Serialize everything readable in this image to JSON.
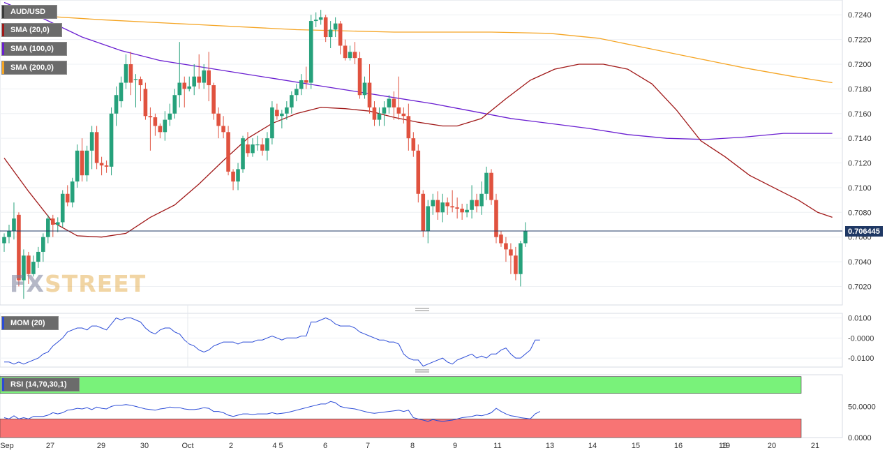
{
  "legend": {
    "symbol": "AUD/USD",
    "sma20": "SMA (20,0)",
    "sma100": "SMA (100,0)",
    "sma200": "SMA (200,0)",
    "mom": "MOM (20)",
    "rsi": "RSI (14,70,30,1)"
  },
  "colors": {
    "up": "#26a17b",
    "down": "#e0523f",
    "sma20": "#a01818",
    "sma100": "#6a1fd1",
    "sma200": "#f5a524",
    "mom": "#2a4bd7",
    "rsi": "#2a4bd7",
    "last_price_line": "#1f3864",
    "rsi_overbought_fill": "#79f27a",
    "rsi_oversold_fill": "#f87474"
  },
  "watermark": {
    "part1": "FX",
    "part2": "STREET"
  },
  "last_price": "0.706445",
  "chart_data": [
    {
      "type": "candlestick",
      "title": "AUD/USD",
      "ylim": [
        0.7005,
        0.7252
      ],
      "y_ticks": [
        "0.7240",
        "0.7220",
        "0.7200",
        "0.7180",
        "0.7160",
        "0.7140",
        "0.7120",
        "0.7100",
        "0.7080",
        "0.7060",
        "0.7040",
        "0.7020"
      ],
      "x_ticks": [
        "Sep",
        "27",
        "29",
        "30",
        "Oct",
        "2",
        "4 5",
        "6",
        "7",
        "8",
        "9",
        "11",
        "13",
        "14",
        "15",
        "16",
        "18",
        "19",
        "20",
        "21"
      ],
      "candles": [
        [
          0.7055,
          0.706,
          0.7048,
          0.7063
        ],
        [
          0.706,
          0.7065,
          0.7055,
          0.707
        ],
        [
          0.7065,
          0.7075,
          0.7058,
          0.7088
        ],
        [
          0.7078,
          0.7025,
          0.702,
          0.708
        ],
        [
          0.7025,
          0.7045,
          0.701,
          0.705
        ],
        [
          0.7045,
          0.703,
          0.7022,
          0.7048
        ],
        [
          0.703,
          0.704,
          0.7028,
          0.7045
        ],
        [
          0.704,
          0.7048,
          0.7035,
          0.7052
        ],
        [
          0.7048,
          0.706,
          0.704,
          0.7063
        ],
        [
          0.706,
          0.7075,
          0.7055,
          0.7078
        ],
        [
          0.7075,
          0.707,
          0.706,
          0.7078
        ],
        [
          0.707,
          0.7072,
          0.7064,
          0.7076
        ],
        [
          0.7072,
          0.7095,
          0.7068,
          0.7098
        ],
        [
          0.7095,
          0.7088,
          0.7085,
          0.7102
        ],
        [
          0.7088,
          0.7105,
          0.7084,
          0.7108
        ],
        [
          0.7105,
          0.713,
          0.71,
          0.7135
        ],
        [
          0.713,
          0.711,
          0.7105,
          0.714
        ],
        [
          0.711,
          0.713,
          0.7105,
          0.7134
        ],
        [
          0.713,
          0.7145,
          0.7115,
          0.715
        ],
        [
          0.7145,
          0.712,
          0.7115,
          0.715
        ],
        [
          0.712,
          0.7118,
          0.711,
          0.7125
        ],
        [
          0.7118,
          0.7117,
          0.7112,
          0.7122
        ],
        [
          0.7117,
          0.716,
          0.711,
          0.7165
        ],
        [
          0.716,
          0.7175,
          0.715,
          0.7182
        ],
        [
          0.717,
          0.7185,
          0.7165,
          0.719
        ],
        [
          0.7185,
          0.72,
          0.718,
          0.7208
        ],
        [
          0.72,
          0.7185,
          0.7175,
          0.721
        ],
        [
          0.7188,
          0.7188,
          0.7165,
          0.7192
        ],
        [
          0.7188,
          0.7183,
          0.717,
          0.719
        ],
        [
          0.718,
          0.7158,
          0.7155,
          0.7185
        ],
        [
          0.7158,
          0.7157,
          0.713,
          0.7165
        ],
        [
          0.7157,
          0.715,
          0.7142,
          0.716
        ],
        [
          0.715,
          0.7145,
          0.714,
          0.7152
        ],
        [
          0.7145,
          0.7155,
          0.7138,
          0.7162
        ],
        [
          0.7155,
          0.716,
          0.715,
          0.7168
        ],
        [
          0.716,
          0.7175,
          0.7156,
          0.718
        ],
        [
          0.7175,
          0.7185,
          0.7165,
          0.7218
        ],
        [
          0.7185,
          0.718,
          0.7165,
          0.719
        ],
        [
          0.718,
          0.7182,
          0.7178,
          0.719
        ],
        [
          0.7182,
          0.719,
          0.7175,
          0.72
        ],
        [
          0.719,
          0.7185,
          0.718,
          0.7208
        ],
        [
          0.7185,
          0.7195,
          0.718,
          0.72
        ],
        [
          0.7195,
          0.7183,
          0.717,
          0.721
        ],
        [
          0.7183,
          0.716,
          0.7155,
          0.7185
        ],
        [
          0.716,
          0.715,
          0.714,
          0.7165
        ],
        [
          0.715,
          0.7145,
          0.714,
          0.7158
        ],
        [
          0.7145,
          0.7113,
          0.711,
          0.715
        ],
        [
          0.7113,
          0.7105,
          0.7098,
          0.7115
        ],
        [
          0.7105,
          0.7115,
          0.7098,
          0.712
        ],
        [
          0.7115,
          0.714,
          0.7112,
          0.7142
        ],
        [
          0.7135,
          0.7128,
          0.7125,
          0.7145
        ],
        [
          0.7128,
          0.7135,
          0.7125,
          0.714
        ],
        [
          0.7135,
          0.7135,
          0.713,
          0.7142
        ],
        [
          0.7135,
          0.713,
          0.7126,
          0.714
        ],
        [
          0.713,
          0.714,
          0.7122,
          0.7145
        ],
        [
          0.714,
          0.7165,
          0.7135,
          0.717
        ],
        [
          0.7163,
          0.7158,
          0.7155,
          0.7168
        ],
        [
          0.7158,
          0.716,
          0.7148,
          0.7163
        ],
        [
          0.716,
          0.7165,
          0.7155,
          0.717
        ],
        [
          0.7165,
          0.7175,
          0.716,
          0.7178
        ],
        [
          0.7175,
          0.718,
          0.717,
          0.7184
        ],
        [
          0.718,
          0.7187,
          0.7175,
          0.7192
        ],
        [
          0.7187,
          0.7185,
          0.718,
          0.7198
        ],
        [
          0.7185,
          0.7235,
          0.718,
          0.724
        ],
        [
          0.7235,
          0.7236,
          0.723,
          0.7242
        ],
        [
          0.7236,
          0.7238,
          0.7232,
          0.7244
        ],
        [
          0.7238,
          0.7222,
          0.7218,
          0.724
        ],
        [
          0.7222,
          0.7228,
          0.7213,
          0.7235
        ],
        [
          0.7228,
          0.7233,
          0.7222,
          0.7238
        ],
        [
          0.7233,
          0.7215,
          0.7208,
          0.7235
        ],
        [
          0.7215,
          0.7205,
          0.7203,
          0.722
        ],
        [
          0.7205,
          0.721,
          0.7203,
          0.7215
        ],
        [
          0.721,
          0.7205,
          0.72,
          0.7218
        ],
        [
          0.7205,
          0.7175,
          0.7172,
          0.721
        ],
        [
          0.7175,
          0.7185,
          0.7172,
          0.719
        ],
        [
          0.7185,
          0.7165,
          0.716,
          0.72
        ],
        [
          0.7165,
          0.7155,
          0.715,
          0.717
        ],
        [
          0.7155,
          0.716,
          0.715,
          0.7165
        ],
        [
          0.716,
          0.7165,
          0.715,
          0.717
        ],
        [
          0.7165,
          0.7172,
          0.716,
          0.7175
        ],
        [
          0.7172,
          0.7165,
          0.7155,
          0.7178
        ],
        [
          0.7165,
          0.716,
          0.7155,
          0.719
        ],
        [
          0.716,
          0.7158,
          0.7152,
          0.7165
        ],
        [
          0.7158,
          0.714,
          0.713,
          0.7168
        ],
        [
          0.714,
          0.713,
          0.7125,
          0.7145
        ],
        [
          0.713,
          0.7095,
          0.7088,
          0.7135
        ],
        [
          0.7095,
          0.7065,
          0.706,
          0.7098
        ],
        [
          0.7065,
          0.7085,
          0.7055,
          0.709
        ],
        [
          0.7085,
          0.709,
          0.7078,
          0.7095
        ],
        [
          0.709,
          0.708,
          0.7074,
          0.7097
        ],
        [
          0.708,
          0.7088,
          0.7072,
          0.7095
        ],
        [
          0.7088,
          0.7085,
          0.7078,
          0.7092
        ],
        [
          0.7085,
          0.7084,
          0.708,
          0.7098
        ],
        [
          0.7084,
          0.7083,
          0.7075,
          0.7092
        ],
        [
          0.7083,
          0.708,
          0.7074,
          0.7087
        ],
        [
          0.708,
          0.7082,
          0.7076,
          0.7087
        ],
        [
          0.7082,
          0.709,
          0.7075,
          0.7102
        ],
        [
          0.709,
          0.7085,
          0.708,
          0.7095
        ],
        [
          0.7085,
          0.7095,
          0.7078,
          0.7105
        ],
        [
          0.7095,
          0.7112,
          0.709,
          0.7117
        ],
        [
          0.7112,
          0.709,
          0.7086,
          0.7115
        ],
        [
          0.709,
          0.706,
          0.7055,
          0.7095
        ],
        [
          0.7062,
          0.7055,
          0.7052,
          0.7065
        ],
        [
          0.7055,
          0.705,
          0.704,
          0.706
        ],
        [
          0.705,
          0.7045,
          0.703,
          0.7055
        ],
        [
          0.7045,
          0.703,
          0.7025,
          0.7052
        ],
        [
          0.703,
          0.7055,
          0.702,
          0.7057
        ],
        [
          0.7055,
          0.7065,
          0.7052,
          0.7072
        ]
      ],
      "sma20": [
        [
          0,
          0.7124
        ],
        [
          5,
          0.7097
        ],
        [
          10,
          0.7072
        ],
        [
          15,
          0.7061
        ],
        [
          20,
          0.706
        ],
        [
          25,
          0.7063
        ],
        [
          30,
          0.7076
        ],
        [
          35,
          0.7086
        ],
        [
          40,
          0.7103
        ],
        [
          45,
          0.7122
        ],
        [
          50,
          0.714
        ],
        [
          55,
          0.7152
        ],
        [
          60,
          0.716
        ],
        [
          65,
          0.7165
        ],
        [
          70,
          0.7164
        ],
        [
          75,
          0.7162
        ],
        [
          80,
          0.7157
        ],
        [
          85,
          0.7153
        ],
        [
          90,
          0.715
        ],
        [
          93,
          0.715
        ],
        [
          98,
          0.7156
        ],
        [
          103,
          0.7172
        ],
        [
          108,
          0.7187
        ],
        [
          113,
          0.7196
        ],
        [
          118,
          0.72
        ],
        [
          123,
          0.72
        ],
        [
          128,
          0.7196
        ],
        [
          133,
          0.7184
        ],
        [
          138,
          0.7163
        ],
        [
          143,
          0.7138
        ],
        [
          148,
          0.7125
        ],
        [
          153,
          0.711
        ],
        [
          158,
          0.71
        ],
        [
          163,
          0.709
        ],
        [
          167,
          0.708
        ],
        [
          170,
          0.7076
        ]
      ],
      "sma100": [
        [
          0,
          0.725
        ],
        [
          8,
          0.7237
        ],
        [
          16,
          0.7222
        ],
        [
          24,
          0.7211
        ],
        [
          32,
          0.7203
        ],
        [
          40,
          0.7198
        ],
        [
          48,
          0.7193
        ],
        [
          56,
          0.7188
        ],
        [
          64,
          0.7183
        ],
        [
          72,
          0.7178
        ],
        [
          80,
          0.7173
        ],
        [
          88,
          0.7168
        ],
        [
          96,
          0.7162
        ],
        [
          104,
          0.7156
        ],
        [
          112,
          0.7152
        ],
        [
          120,
          0.7148
        ],
        [
          128,
          0.7143
        ],
        [
          136,
          0.714
        ],
        [
          144,
          0.7139
        ],
        [
          152,
          0.7141
        ],
        [
          160,
          0.7144
        ],
        [
          170,
          0.7144
        ]
      ],
      "sma200": [
        [
          0,
          0.7241
        ],
        [
          20,
          0.7236
        ],
        [
          40,
          0.7232
        ],
        [
          60,
          0.7228
        ],
        [
          80,
          0.7226
        ],
        [
          100,
          0.7226
        ],
        [
          112,
          0.7225
        ],
        [
          122,
          0.7221
        ],
        [
          132,
          0.7213
        ],
        [
          142,
          0.7205
        ],
        [
          152,
          0.7197
        ],
        [
          162,
          0.719
        ],
        [
          170,
          0.7185
        ]
      ]
    },
    {
      "type": "line",
      "title": "MOM (20)",
      "ylim": [
        -0.0145,
        0.0123
      ],
      "y_ticks": [
        "0.0100",
        "-0.0000",
        "-0.0100"
      ],
      "values": [
        -0.012,
        -0.012,
        -0.013,
        -0.012,
        -0.013,
        -0.012,
        -0.011,
        -0.01,
        -0.008,
        -0.007,
        -0.004,
        -0.002,
        0.0,
        0.003,
        0.004,
        0.005,
        0.005,
        0.004,
        0.006,
        0.006,
        0.005,
        0.004,
        0.007,
        0.01,
        0.009,
        0.01,
        0.01,
        0.009,
        0.008,
        0.005,
        0.003,
        0.002,
        0.004,
        0.005,
        0.005,
        0.003,
        0.002,
        -0.001,
        -0.003,
        -0.004,
        -0.006,
        -0.007,
        -0.006,
        -0.004,
        -0.003,
        -0.002,
        -0.002,
        -0.002,
        -0.003,
        -0.002,
        -0.002,
        -0.002,
        -0.001,
        -0.001,
        0.0,
        0.001,
        0.0,
        -0.001,
        0.0,
        0.0,
        0.0,
        0.001,
        0.001,
        0.008,
        0.008,
        0.009,
        0.01,
        0.009,
        0.007,
        0.006,
        0.006,
        0.006,
        0.005,
        0.003,
        0.002,
        0.001,
        0.0,
        -0.001,
        -0.001,
        -0.002,
        -0.002,
        -0.003,
        -0.008,
        -0.01,
        -0.011,
        -0.011,
        -0.014,
        -0.013,
        -0.012,
        -0.011,
        -0.01,
        -0.012,
        -0.013,
        -0.011,
        -0.01,
        -0.009,
        -0.008,
        -0.01,
        -0.009,
        -0.01,
        -0.008,
        -0.008,
        -0.006,
        -0.005,
        -0.008,
        -0.01,
        -0.01,
        -0.008,
        -0.006,
        -0.001,
        -0.001
      ]
    },
    {
      "type": "line",
      "title": "RSI (14,70,30,1)",
      "ylim": [
        0,
        101
      ],
      "y_ticks": [
        "50.0000",
        "0.0000"
      ],
      "overbought": 70,
      "oversold": 30,
      "values": [
        32,
        30,
        35,
        30,
        32,
        30,
        34,
        34,
        34,
        36,
        40,
        38,
        40,
        44,
        45,
        47,
        46,
        48,
        45,
        49,
        47,
        46,
        50,
        52,
        52,
        53,
        52,
        50,
        48,
        46,
        45,
        44,
        46,
        47,
        49,
        48,
        48,
        46,
        45,
        45,
        46,
        48,
        47,
        42,
        42,
        40,
        36,
        34,
        36,
        38,
        38,
        37,
        38,
        38,
        38,
        40,
        38,
        39,
        40,
        42,
        44,
        46,
        48,
        50,
        52,
        54,
        54,
        58,
        56,
        50,
        48,
        47,
        46,
        44,
        42,
        40,
        39,
        40,
        41,
        42,
        43,
        44,
        42,
        44,
        32,
        30,
        28,
        26,
        29,
        27,
        26,
        27,
        28,
        30,
        32,
        33,
        34,
        36,
        35,
        37,
        40,
        47,
        42,
        38,
        35,
        34,
        32,
        31,
        30,
        38,
        42
      ]
    }
  ]
}
